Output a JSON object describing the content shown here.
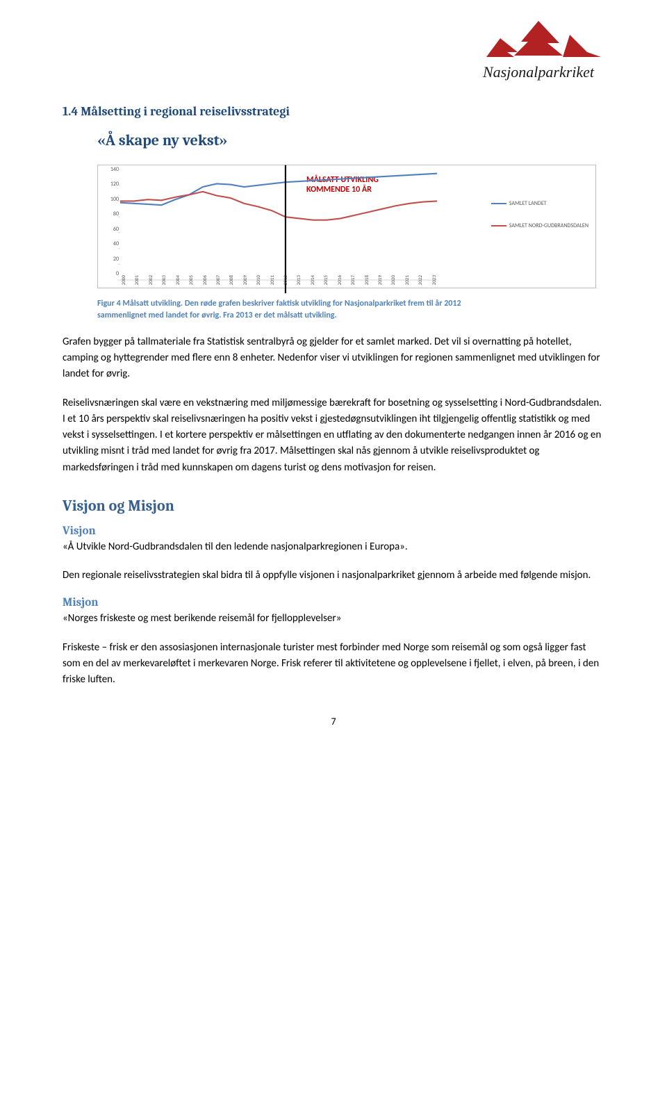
{
  "logo": {
    "text": "Nasjonalparkriket"
  },
  "section_title": "1.4 Målsetting i regional reiselivsstrategi",
  "quote_title": "«Å skape ny vekst»",
  "chart": {
    "type": "line",
    "title_line1": "MÅLSATT UTVIKLING",
    "title_line2": "KOMMENDE 10 ÅR",
    "yticks": [
      "0",
      "20",
      "40",
      "60",
      "80",
      "100",
      "120",
      "140"
    ],
    "ylim": [
      0,
      140
    ],
    "xcategories": [
      "2000",
      "2001",
      "2002",
      "2003",
      "2004",
      "2005",
      "2006",
      "2007",
      "2008",
      "2009",
      "2010",
      "2011",
      "2012",
      "2013",
      "2014",
      "2015",
      "2016",
      "2017",
      "2018",
      "2019",
      "2020",
      "2021",
      "2022",
      "2023"
    ],
    "series": [
      {
        "name": "SAMLET LANDET",
        "color": "#4f81bd",
        "values": [
          98,
          97,
          96,
          95,
          102,
          108,
          118,
          122,
          121,
          118,
          120,
          122,
          124,
          125,
          126,
          127,
          128,
          129,
          130,
          131,
          132,
          133,
          134,
          135
        ]
      },
      {
        "name": "SAMLET NORD-GUDBRANDSDALEN",
        "color": "#c0504d",
        "values": [
          100,
          100,
          102,
          101,
          105,
          108,
          112,
          107,
          104,
          97,
          93,
          88,
          80,
          78,
          76,
          76,
          78,
          82,
          86,
          90,
          94,
          97,
          99,
          100
        ]
      }
    ],
    "divider_x": "2012",
    "background_color": "#ffffff",
    "border_color": "#bfbfbf",
    "axis_color": "#d9d9d9"
  },
  "caption": "Figur 4 Målsatt utvikling. Den røde grafen beskriver faktisk utvikling for Nasjonalparkriket frem til år 2012 sammenlignet med landet for øvrig. Fra 2013 er det målsatt utvikling.",
  "para1": "Grafen bygger på tallmateriale fra Statistisk sentralbyrå og gjelder for et samlet marked. Det vil si overnatting på hotellet, camping og hyttegrender med flere enn 8 enheter. Nedenfor viser vi utviklingen for regionen sammenlignet med utviklingen for landet for øvrig.",
  "para2": "Reiselivsnæringen skal være en vekstnæring med miljømessige bærekraft for bosetning og sysselsetting i Nord-Gudbrandsdalen. I et 10 års perspektiv skal reiselivsnæringen ha positiv vekst i gjestedøgnsutviklingen iht tilgjengelig offentlig statistikk og med vekst i sysselsettingen. I et kortere perspektiv er målsettingen en utflating av den dokumenterte nedgangen innen år 2016 og en utvikling misnt i tråd med landet for øvrig fra 2017. Målsettingen skal nås gjennom å utvikle reiselivsproduktet og markedsføringen i tråd med kunnskapen om dagens turist og dens motivasjon for reisen.",
  "vm_heading": "Visjon og Misjon",
  "visjon_heading": "Visjon",
  "visjon_text": "«Å Utvikle Nord-Gudbrandsdalen til den ledende nasjonalparkregionen i Europa».",
  "visjon_para": "Den regionale reiselivsstrategien skal bidra til å oppfylle visjonen i nasjonalparkriket gjennom å arbeide med følgende misjon.",
  "misjon_heading": "Misjon",
  "misjon_text": "«Norges friskeste og mest berikende reisemål for fjellopplevelser»",
  "misjon_para": "Friskeste – frisk er den assosiasjonen internasjonale turister mest forbinder med Norge som reisemål og som også ligger fast som en del av merkevareløftet i merkevaren Norge. Frisk referer til aktivitetene og opplevelsene i fjellet, i elven, på breen, i den friske luften.",
  "page_number": "7"
}
